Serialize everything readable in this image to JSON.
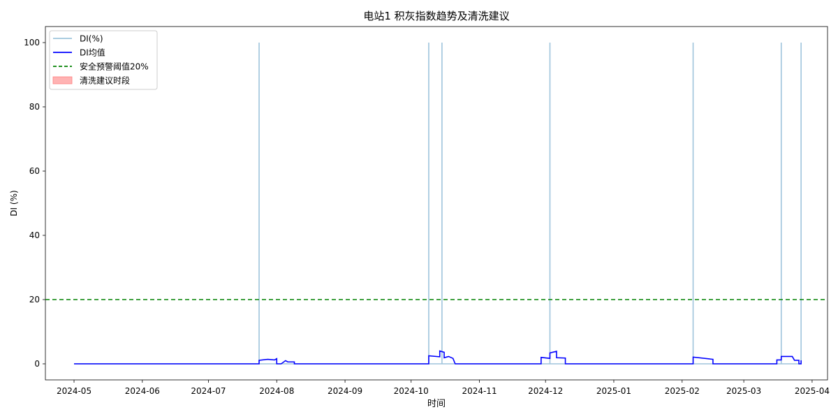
{
  "chart_data": {
    "type": "line",
    "title": "电站1 积灰指数趋势及清洗建议",
    "xlabel": "时间",
    "ylabel": "DI (%)",
    "xlim": [
      "2024-04-18",
      "2025-04-08"
    ],
    "ylim": [
      -5,
      105
    ],
    "x_tick_labels": [
      "2024-05",
      "2024-06",
      "2024-07",
      "2024-08",
      "2024-09",
      "2024-10",
      "2024-11",
      "2024-12",
      "2025-01",
      "2025-02",
      "2025-03",
      "2025-04"
    ],
    "y_tick_labels": [
      "0",
      "20",
      "40",
      "60",
      "80",
      "100"
    ],
    "y_ticks": [
      0,
      20,
      40,
      60,
      80,
      100
    ],
    "grid": false,
    "legend_position": "top-left",
    "legend": [
      {
        "label": "DI(%)",
        "color": "#9ec4dc",
        "style": "solid"
      },
      {
        "label": "DI均值",
        "color": "#0000ff",
        "style": "solid"
      },
      {
        "label": "安全预警阈值20%",
        "color": "#008000",
        "style": "dashed"
      },
      {
        "label": "清洗建议时段",
        "color": "#ffb3b3",
        "style": "patch"
      }
    ],
    "threshold": {
      "name": "安全预警阈值20%",
      "value": 20
    },
    "series": [
      {
        "name": "DI(%)",
        "color": "#9ec4dc",
        "points": [
          [
            "2024-05-01",
            0
          ],
          [
            "2024-07-24",
            0
          ],
          [
            "2024-07-24",
            100
          ],
          [
            "2024-07-24",
            0
          ],
          [
            "2024-08-09",
            0
          ],
          [
            "2024-10-09",
            0
          ],
          [
            "2024-10-09",
            100
          ],
          [
            "2024-10-09",
            0
          ],
          [
            "2024-10-15",
            0
          ],
          [
            "2024-10-15",
            100
          ],
          [
            "2024-10-15",
            0
          ],
          [
            "2024-12-03",
            0
          ],
          [
            "2024-12-03",
            100
          ],
          [
            "2024-12-03",
            0
          ],
          [
            "2025-02-06",
            0
          ],
          [
            "2025-02-06",
            100
          ],
          [
            "2025-02-06",
            0
          ],
          [
            "2025-03-18",
            0
          ],
          [
            "2025-03-18",
            100
          ],
          [
            "2025-03-18",
            0
          ],
          [
            "2025-03-27",
            0
          ],
          [
            "2025-03-27",
            100
          ],
          [
            "2025-03-27",
            0
          ]
        ]
      },
      {
        "name": "DI均值",
        "color": "#0000ff",
        "points": [
          [
            "2024-05-01",
            0
          ],
          [
            "2024-07-24",
            0
          ],
          [
            "2024-07-24",
            1.1
          ],
          [
            "2024-07-28",
            1.4
          ],
          [
            "2024-07-31",
            1.2
          ],
          [
            "2024-08-01",
            1.6
          ],
          [
            "2024-08-01",
            0
          ],
          [
            "2024-08-03",
            0
          ],
          [
            "2024-08-05",
            1.0
          ],
          [
            "2024-08-06",
            0.6
          ],
          [
            "2024-08-09",
            0.6
          ],
          [
            "2024-08-09",
            0
          ],
          [
            "2024-10-09",
            0
          ],
          [
            "2024-10-09",
            2.5
          ],
          [
            "2024-10-14",
            2.2
          ],
          [
            "2024-10-14",
            4.0
          ],
          [
            "2024-10-16",
            3.6
          ],
          [
            "2024-10-16",
            1.9
          ],
          [
            "2024-10-18",
            2.3
          ],
          [
            "2024-10-20",
            1.7
          ],
          [
            "2024-10-21",
            0
          ],
          [
            "2024-11-29",
            0
          ],
          [
            "2024-11-29",
            2.0
          ],
          [
            "2024-12-03",
            1.7
          ],
          [
            "2024-12-03",
            3.4
          ],
          [
            "2024-12-06",
            3.9
          ],
          [
            "2024-12-06",
            1.9
          ],
          [
            "2024-12-10",
            1.8
          ],
          [
            "2024-12-10",
            0
          ],
          [
            "2025-02-06",
            0
          ],
          [
            "2025-02-06",
            2.1
          ],
          [
            "2025-02-15",
            1.4
          ],
          [
            "2025-02-15",
            0
          ],
          [
            "2025-03-16",
            0
          ],
          [
            "2025-03-16",
            1.2
          ],
          [
            "2025-03-18",
            1.2
          ],
          [
            "2025-03-18",
            2.3
          ],
          [
            "2025-03-23",
            2.3
          ],
          [
            "2025-03-24",
            1.1
          ],
          [
            "2025-03-26",
            1.1
          ],
          [
            "2025-03-26",
            0
          ],
          [
            "2025-03-27",
            0
          ],
          [
            "2025-03-27",
            1.1
          ]
        ]
      }
    ]
  }
}
